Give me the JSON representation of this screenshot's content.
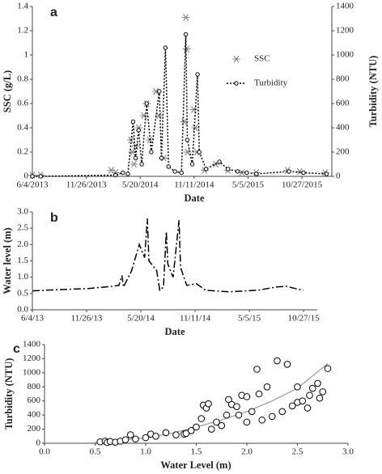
{
  "chart_data": [
    {
      "type": "line",
      "panel": "a",
      "xlabel": "Date",
      "ylabel": "SSC (g/L)",
      "y2label": "Turbidity  (NTU)",
      "xlim": [
        "2013-06-04",
        "2016-02-01"
      ],
      "xticks": [
        {
          "value": "2013-06-04",
          "label": "6/4/2013"
        },
        {
          "value": "2013-11-26",
          "label": "11/26/2013"
        },
        {
          "value": "2014-05-20",
          "label": "5/20/2014"
        },
        {
          "value": "2014-11-11",
          "label": "11/11/2014"
        },
        {
          "value": "2015-05-05",
          "label": "5/5/2015"
        },
        {
          "value": "2015-10-27",
          "label": "10/27/2015"
        }
      ],
      "ylim": [
        0,
        1.4
      ],
      "yticks": [
        0,
        0.2,
        0.4,
        0.6,
        0.8,
        1,
        1.2,
        1.4
      ],
      "y2lim": [
        0,
        1400
      ],
      "y2ticks": [
        0,
        200,
        400,
        600,
        800,
        1000,
        1200,
        1400
      ],
      "legend": "center right",
      "series": [
        {
          "name": "SSC",
          "color": "#888888",
          "marker": "asterisk",
          "line": false,
          "x": [
            "2013-06-04",
            "2013-07-01",
            "2014-02-15",
            "2014-03-01",
            "2014-04-20",
            "2014-04-25",
            "2014-04-30",
            "2014-05-05",
            "2014-05-15",
            "2014-06-01",
            "2014-06-10",
            "2014-06-20",
            "2014-07-10",
            "2014-07-20",
            "2014-08-05",
            "2014-10-10",
            "2014-10-15",
            "2014-10-18",
            "2014-10-20",
            "2014-11-10",
            "2014-11-15",
            "2014-11-20",
            "2014-12-15",
            "2015-01-20",
            "2015-03-01",
            "2015-04-15",
            "2015-06-01",
            "2015-09-10",
            "2015-10-20",
            "2016-01-10"
          ],
          "values": [
            0.01,
            0.01,
            0.05,
            0.03,
            0.3,
            0.2,
            0.1,
            0.25,
            0.4,
            0.5,
            0.6,
            0.3,
            0.7,
            0.5,
            0.15,
            0.45,
            1.31,
            1.05,
            0.2,
            0.55,
            0.4,
            0.2,
            0.05,
            0.1,
            0.05,
            0.03,
            0.03,
            0.05,
            0.04,
            0.03
          ]
        },
        {
          "name": "Turbidity",
          "color": "#000000",
          "marker": "circle",
          "line": true,
          "dash": "2,2",
          "axis": "y2",
          "x": [
            "2013-06-04",
            "2013-07-01",
            "2014-03-01",
            "2014-03-25",
            "2014-04-10",
            "2014-04-27",
            "2014-05-05",
            "2014-05-15",
            "2014-05-25",
            "2014-06-10",
            "2014-06-25",
            "2014-07-21",
            "2014-07-28",
            "2014-08-10",
            "2014-08-20",
            "2014-09-10",
            "2014-10-01",
            "2014-10-15",
            "2014-10-20",
            "2014-11-05",
            "2014-11-22",
            "2014-11-28",
            "2014-12-20",
            "2015-02-01",
            "2015-03-01",
            "2015-04-01",
            "2015-05-01",
            "2015-06-01",
            "2015-09-15",
            "2015-11-01",
            "2016-01-15"
          ],
          "values": [
            0,
            0,
            10,
            30,
            20,
            450,
            150,
            380,
            100,
            600,
            200,
            700,
            150,
            1060,
            80,
            40,
            30,
            1170,
            300,
            100,
            840,
            200,
            60,
            120,
            60,
            40,
            30,
            20,
            40,
            30,
            20
          ]
        }
      ]
    },
    {
      "type": "line",
      "panel": "b",
      "xlabel": "Date",
      "ylabel": "Water level (m)",
      "xlim": [
        "2013-06-04",
        "2015-12-10"
      ],
      "xticks": [
        {
          "value": "2013-06-04",
          "label": "6/4/13"
        },
        {
          "value": "2013-11-26",
          "label": "11/26/13"
        },
        {
          "value": "2014-05-20",
          "label": "5/20/14"
        },
        {
          "value": "2014-11-11",
          "label": "11/11/14"
        },
        {
          "value": "2015-05-05",
          "label": "5/5/15"
        },
        {
          "value": "2015-10-27",
          "label": "10/27/15"
        }
      ],
      "ylim": [
        0,
        3
      ],
      "yticks": [
        {
          "value": 0,
          "label": "0.0"
        },
        {
          "value": 0.5,
          "label": "0.5"
        },
        {
          "value": 1,
          "label": "1.0"
        },
        {
          "value": 1.5,
          "label": "1.5"
        },
        {
          "value": 2,
          "label": "2.0"
        },
        {
          "value": 2.5,
          "label": "2.5"
        },
        {
          "value": 3,
          "label": "3.0"
        }
      ],
      "series": [
        {
          "color": "#000000",
          "line": true,
          "dash": "9,3,2,3",
          "x": [
            "2013-06-04",
            "2013-09-01",
            "2013-12-01",
            "2014-02-15",
            "2014-03-10",
            "2014-03-20",
            "2014-03-25",
            "2014-04-20",
            "2014-05-15",
            "2014-06-01",
            "2014-06-10",
            "2014-06-15",
            "2014-07-10",
            "2014-07-20",
            "2014-08-01",
            "2014-08-10",
            "2014-08-15",
            "2014-09-01",
            "2014-09-20",
            "2014-09-25",
            "2014-10-15",
            "2014-11-15",
            "2014-12-15",
            "2015-03-01",
            "2015-06-01",
            "2015-08-01",
            "2015-09-01",
            "2015-10-01",
            "2015-10-27"
          ],
          "values": [
            0.58,
            0.62,
            0.65,
            0.72,
            0.75,
            1.05,
            0.7,
            1.2,
            2.0,
            1.6,
            2.8,
            1.5,
            1.2,
            0.6,
            0.7,
            2.4,
            1.4,
            1.0,
            2.75,
            1.3,
            0.75,
            0.8,
            0.6,
            0.55,
            0.6,
            0.7,
            0.72,
            0.65,
            0.6
          ]
        }
      ]
    },
    {
      "type": "scatter",
      "panel": "c",
      "xlabel": "Water Level (m)",
      "ylabel": "Turbidity  (NTU)",
      "xlim": [
        0,
        3
      ],
      "xticks": [
        {
          "value": 0,
          "label": "0.0"
        },
        {
          "value": 0.5,
          "label": "0.5"
        },
        {
          "value": 1,
          "label": "1.0"
        },
        {
          "value": 1.5,
          "label": "1.5"
        },
        {
          "value": 2,
          "label": "2.0"
        },
        {
          "value": 2.5,
          "label": "2.5"
        },
        {
          "value": 3,
          "label": "3.0"
        }
      ],
      "ylim": [
        0,
        1400
      ],
      "yticks": [
        0,
        200,
        400,
        600,
        800,
        1000,
        1200,
        1400
      ],
      "series": [
        {
          "color": "#000000",
          "marker": "circle",
          "x": [
            0.55,
            0.6,
            0.62,
            0.65,
            0.7,
            0.75,
            0.8,
            0.85,
            0.9,
            1.0,
            1.05,
            1.1,
            1.2,
            1.3,
            1.38,
            1.4,
            1.45,
            1.5,
            1.55,
            1.57,
            1.6,
            1.62,
            1.65,
            1.7,
            1.75,
            1.8,
            1.82,
            1.85,
            1.9,
            1.92,
            1.95,
            2.0,
            2.0,
            2.05,
            2.1,
            2.12,
            2.15,
            2.2,
            2.25,
            2.3,
            2.35,
            2.4,
            2.45,
            2.5,
            2.5,
            2.55,
            2.6,
            2.62,
            2.65,
            2.7,
            2.72,
            2.75,
            2.8
          ],
          "values": [
            20,
            30,
            10,
            25,
            15,
            30,
            50,
            120,
            60,
            80,
            130,
            100,
            150,
            120,
            130,
            140,
            180,
            230,
            350,
            540,
            500,
            560,
            200,
            300,
            250,
            400,
            620,
            550,
            520,
            400,
            680,
            660,
            300,
            450,
            1050,
            700,
            330,
            800,
            380,
            1170,
            450,
            1120,
            530,
            580,
            800,
            600,
            500,
            680,
            780,
            850,
            640,
            730,
            1060
          ]
        }
      ],
      "trendline": {
        "color": "#999999",
        "x": [
          0.5,
          0.75,
          1.0,
          1.25,
          1.5,
          1.75,
          2.0,
          2.25,
          2.5,
          2.8
        ],
        "values": [
          10,
          40,
          80,
          140,
          230,
          330,
          450,
          600,
          780,
          1130
        ]
      }
    }
  ]
}
